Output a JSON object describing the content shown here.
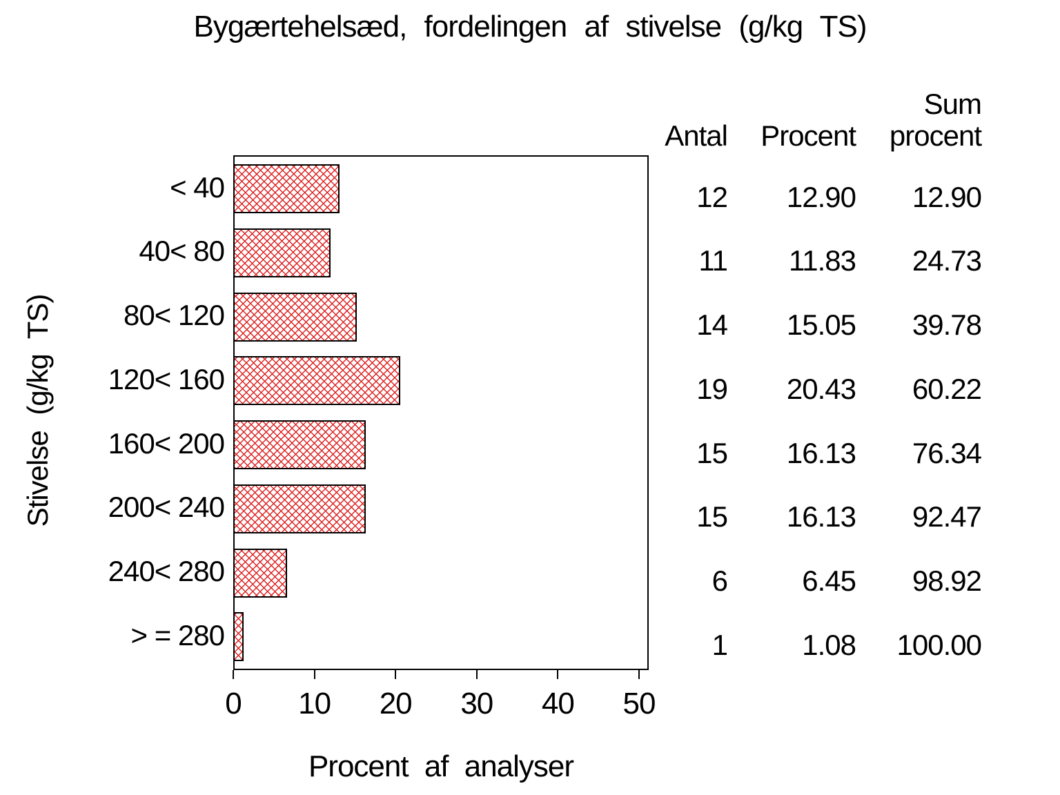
{
  "title": "Bygærtehelsæd, fordelingen af stivelse (g/kg TS)",
  "chart_data": {
    "type": "bar",
    "orientation": "horizontal",
    "title": "Bygærtehelsæd, fordelingen af stivelse (g/kg TS)",
    "categories": [
      "< 40",
      "40< 80",
      "80< 120",
      "120< 160",
      "160< 200",
      "200< 240",
      "240< 280",
      "> = 280"
    ],
    "values": [
      12.9,
      11.83,
      15.05,
      20.43,
      16.13,
      16.13,
      6.45,
      1.08
    ],
    "xlabel": "Procent af analyser",
    "ylabel": "Stivelse (g/kg TS)",
    "xlim": [
      0,
      50
    ],
    "xticks": [
      0,
      10,
      20,
      30,
      40,
      50
    ],
    "grid": "off",
    "bar_fill": "crosshatch",
    "bar_hatch_color": "#dd2020",
    "bar_border_color": "#000000"
  },
  "table": {
    "headers": {
      "antal": "Antal",
      "procent": "Procent",
      "sum_line1": "Sum",
      "sum_line2": "procent"
    },
    "rows": [
      {
        "antal": "12",
        "procent": "12.90",
        "sum": "12.90"
      },
      {
        "antal": "11",
        "procent": "11.83",
        "sum": "24.73"
      },
      {
        "antal": "14",
        "procent": "15.05",
        "sum": "39.78"
      },
      {
        "antal": "19",
        "procent": "20.43",
        "sum": "60.22"
      },
      {
        "antal": "15",
        "procent": "16.13",
        "sum": "76.34"
      },
      {
        "antal": "15",
        "procent": "16.13",
        "sum": "92.47"
      },
      {
        "antal": "6",
        "procent": "6.45",
        "sum": "98.92"
      },
      {
        "antal": "1",
        "procent": "1.08",
        "sum": "100.00"
      }
    ]
  }
}
